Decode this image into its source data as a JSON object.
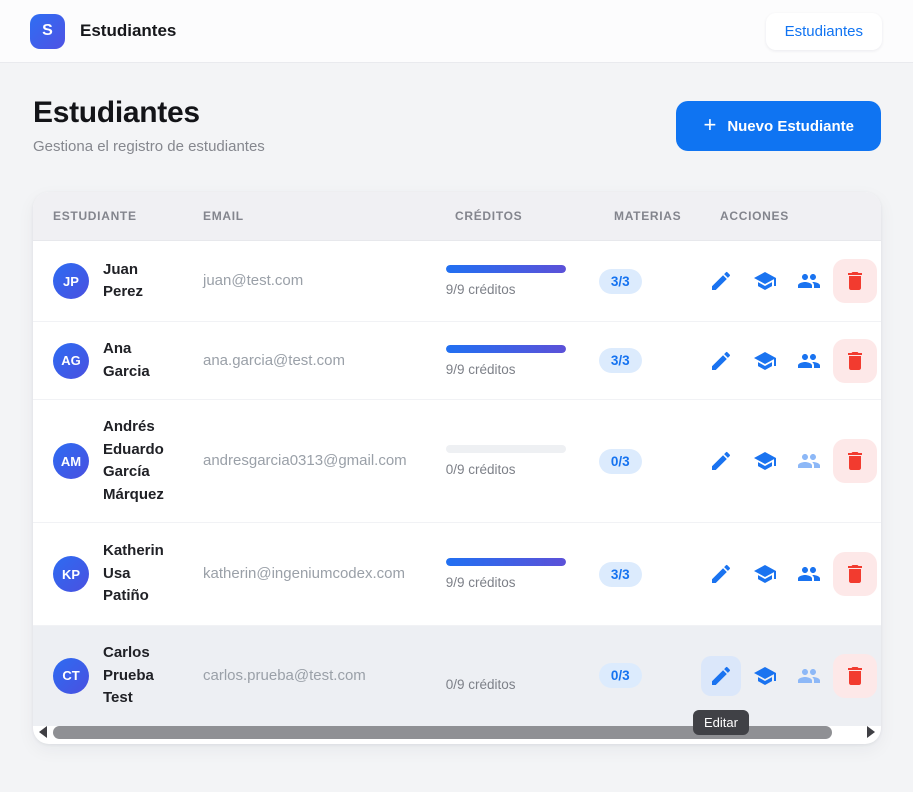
{
  "topbar": {
    "logo_letter": "S",
    "title": "Estudiantes",
    "nav_button_label": "Estudiantes"
  },
  "page_header": {
    "title": "Estudiantes",
    "subtitle": "Gestiona el registro de estudiantes",
    "new_button_label": "Nuevo Estudiante",
    "plus_glyph": "+"
  },
  "table": {
    "columns": {
      "student": "Estudiante",
      "email": "Email",
      "credits": "Créditos",
      "subjects": "Materias",
      "actions": "Acciones"
    },
    "rows": [
      {
        "initials": "JP",
        "name": "Juan Perez",
        "email": "juan@test.com",
        "credits_text": "9/9 créditos",
        "credits_pct": 100,
        "show_bar": true,
        "subjects_badge": "3/3",
        "users_enabled": true,
        "row_hover": false,
        "edit_active": false
      },
      {
        "initials": "AG",
        "name": "Ana Garcia",
        "email": "ana.garcia@test.com",
        "credits_text": "9/9 créditos",
        "credits_pct": 100,
        "show_bar": true,
        "subjects_badge": "3/3",
        "users_enabled": true,
        "row_hover": false,
        "edit_active": false
      },
      {
        "initials": "AM",
        "name": "Andrés Eduardo García Márquez",
        "email": "andresgarcia0313@gmail.com",
        "credits_text": "0/9 créditos",
        "credits_pct": 0,
        "show_bar": true,
        "subjects_badge": "0/3",
        "users_enabled": false,
        "row_hover": false,
        "edit_active": false
      },
      {
        "initials": "KP",
        "name": "Katherin Usa Patiño",
        "email": "katherin@ingeniumcodex.com",
        "credits_text": "9/9 créditos",
        "credits_pct": 100,
        "show_bar": true,
        "subjects_badge": "3/3",
        "users_enabled": true,
        "row_hover": false,
        "edit_active": false
      },
      {
        "initials": "CT",
        "name": "Carlos Prueba Test",
        "email": "carlos.prueba@test.com",
        "credits_text": "0/9 créditos",
        "credits_pct": 0,
        "show_bar": false,
        "subjects_badge": "0/3",
        "users_enabled": false,
        "row_hover": true,
        "edit_active": true
      }
    ]
  },
  "tooltip": {
    "edit_label": "Editar"
  },
  "colors": {
    "accent_blue": "#0f74f2",
    "icon_blue": "#1a73f0",
    "icon_blue_faded": "#8db8f7",
    "danger_red": "#f23b2f",
    "danger_bg": "#fde8e8",
    "badge_bg": "#dcebfd",
    "badge_text": "#1673f0",
    "progress_gradient_start": "#2170f2",
    "progress_gradient_end": "#5c51d8",
    "tooltip_bg": "#404146"
  }
}
